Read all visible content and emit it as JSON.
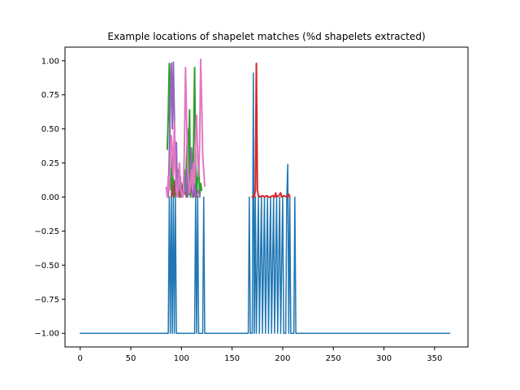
{
  "chart_data": {
    "type": "line",
    "title": "Example locations of shapelet matches (%d shapelets extracted)",
    "xlabel": "",
    "ylabel": "",
    "xlim": [
      -15,
      383
    ],
    "ylim": [
      -1.1,
      1.1
    ],
    "xticks": [
      0,
      50,
      100,
      150,
      200,
      250,
      300,
      350
    ],
    "xtick_labels": [
      "0",
      "50",
      "100",
      "150",
      "200",
      "250",
      "300",
      "350"
    ],
    "yticks": [
      -1.0,
      -0.75,
      -0.5,
      -0.25,
      0.0,
      0.25,
      0.5,
      0.75,
      1.0
    ],
    "ytick_labels": [
      "−1.00",
      "−0.75",
      "−0.50",
      "−0.25",
      "0.00",
      "0.25",
      "0.50",
      "0.75",
      "1.00"
    ],
    "grid": false,
    "legend": false,
    "series": [
      {
        "color": "#1f77b4",
        "linewidth": 1.5,
        "points": [
          [
            0,
            -1
          ],
          [
            87,
            -1
          ],
          [
            88,
            0
          ],
          [
            89,
            -1
          ],
          [
            90,
            0
          ],
          [
            91,
            -1
          ],
          [
            92,
            0
          ],
          [
            93,
            -1
          ],
          [
            94,
            0
          ],
          [
            95,
            -1
          ],
          [
            113,
            -1
          ],
          [
            114,
            0
          ],
          [
            115,
            -1
          ],
          [
            116,
            0
          ],
          [
            117,
            -1
          ],
          [
            121,
            -1
          ],
          [
            122,
            0
          ],
          [
            123,
            -1
          ],
          [
            166,
            -1
          ],
          [
            167,
            0
          ],
          [
            168,
            -1
          ],
          [
            170,
            -1
          ],
          [
            171,
            0.91
          ],
          [
            172,
            -1
          ],
          [
            173,
            0
          ],
          [
            174,
            -1
          ],
          [
            176,
            0
          ],
          [
            177,
            -1
          ],
          [
            179,
            0
          ],
          [
            180,
            -1
          ],
          [
            182,
            0
          ],
          [
            183,
            -1
          ],
          [
            185,
            0
          ],
          [
            186,
            -1
          ],
          [
            188,
            0
          ],
          [
            189,
            -1
          ],
          [
            191,
            0
          ],
          [
            192,
            -1
          ],
          [
            194,
            0
          ],
          [
            195,
            -1
          ],
          [
            197,
            0
          ],
          [
            198,
            -1
          ],
          [
            200,
            0
          ],
          [
            201,
            -1
          ],
          [
            203,
            -1
          ],
          [
            204,
            0
          ],
          [
            205,
            0.24
          ],
          [
            206,
            -1
          ],
          [
            207,
            0
          ],
          [
            208,
            -1
          ],
          [
            211,
            -1
          ],
          [
            212,
            0
          ],
          [
            213,
            -1
          ],
          [
            365,
            -1
          ]
        ]
      },
      {
        "color": "#2ca02c",
        "linewidth": 2,
        "points": [
          [
            86,
            0.35
          ],
          [
            87,
            0.6
          ],
          [
            88,
            0.98
          ],
          [
            89,
            0.15
          ],
          [
            90,
            0.05
          ],
          [
            91,
            0.3
          ],
          [
            92,
            0.05
          ],
          [
            93,
            0.0
          ],
          [
            95,
            0.2
          ],
          [
            96,
            0.0
          ],
          [
            98,
            0.1
          ],
          [
            99,
            0.0
          ],
          [
            100,
            0.1
          ],
          [
            101,
            0.0
          ],
          [
            103,
            0.2
          ],
          [
            104,
            0.02
          ],
          [
            106,
            0.5
          ],
          [
            107,
            0.05
          ],
          [
            108,
            0.64
          ],
          [
            109,
            0.0
          ],
          [
            110,
            0.2
          ],
          [
            111,
            0.0
          ],
          [
            112,
            0.38
          ],
          [
            113,
            0.95
          ],
          [
            114,
            0.2
          ],
          [
            115,
            0.0
          ],
          [
            117,
            0.3
          ],
          [
            118,
            0.0
          ],
          [
            119,
            0.1
          ],
          [
            120,
            0.05
          ]
        ]
      },
      {
        "color": "#8c564b",
        "linewidth": 2,
        "points": [
          [
            90,
            0.0
          ],
          [
            91,
            0.08
          ],
          [
            92,
            0.0
          ],
          [
            93,
            0.12
          ],
          [
            94,
            0.01
          ],
          [
            96,
            0.05
          ],
          [
            97,
            0.18
          ],
          [
            98,
            0.0
          ],
          [
            100,
            0.08
          ],
          [
            101,
            0.0
          ],
          [
            103,
            0.05
          ],
          [
            105,
            0.0
          ],
          [
            107,
            0.1
          ],
          [
            108,
            0.02
          ],
          [
            110,
            0.07
          ],
          [
            112,
            0.0
          ],
          [
            114,
            0.05
          ],
          [
            116,
            0.0
          ]
        ]
      },
      {
        "color": "#9467bd",
        "linewidth": 2,
        "points": [
          [
            87,
            0.0
          ],
          [
            88,
            0.3
          ],
          [
            89,
            0.7
          ],
          [
            90,
            0.98
          ],
          [
            91,
            0.5
          ],
          [
            92,
            0.99
          ],
          [
            93,
            0.6
          ],
          [
            94,
            0.2
          ],
          [
            95,
            0.4
          ],
          [
            96,
            0.0
          ],
          [
            97,
            0.2
          ],
          [
            98,
            0.05
          ],
          [
            99,
            0.15
          ],
          [
            100,
            0.0
          ],
          [
            104,
            0.05
          ],
          [
            105,
            0.2
          ],
          [
            106,
            0.0
          ],
          [
            109,
            0.1
          ],
          [
            110,
            0.36
          ],
          [
            111,
            0.0
          ],
          [
            113,
            0.1
          ],
          [
            114,
            0.0
          ],
          [
            117,
            0.05
          ],
          [
            118,
            0.0
          ]
        ]
      },
      {
        "color": "#e377c2",
        "linewidth": 2,
        "points": [
          [
            85,
            0.07
          ],
          [
            86,
            0.0
          ],
          [
            87,
            0.15
          ],
          [
            88,
            0.05
          ],
          [
            89,
            0.25
          ],
          [
            90,
            0.45
          ],
          [
            91,
            0.35
          ],
          [
            92,
            0.15
          ],
          [
            93,
            0.55
          ],
          [
            94,
            0.2
          ],
          [
            95,
            0.05
          ],
          [
            96,
            0.0
          ],
          [
            97,
            0.1
          ],
          [
            98,
            0.25
          ],
          [
            99,
            0.08
          ],
          [
            100,
            0.02
          ],
          [
            101,
            0.0
          ],
          [
            102,
            0.05
          ],
          [
            103,
            0.4
          ],
          [
            104,
            0.95
          ],
          [
            105,
            0.6
          ],
          [
            106,
            0.3
          ],
          [
            107,
            0.12
          ],
          [
            108,
            0.03
          ],
          [
            109,
            0.1
          ],
          [
            110,
            0.2
          ],
          [
            111,
            0.05
          ],
          [
            112,
            0.25
          ],
          [
            113,
            0.1
          ],
          [
            114,
            0.45
          ],
          [
            115,
            0.6
          ],
          [
            116,
            0.3
          ],
          [
            117,
            0.15
          ],
          [
            118,
            0.4
          ],
          [
            119,
            1.01
          ],
          [
            120,
            0.7
          ],
          [
            121,
            0.3
          ],
          [
            122,
            0.2
          ],
          [
            123,
            0.08
          ]
        ]
      },
      {
        "color": "#d62728",
        "linewidth": 2,
        "points": [
          [
            170,
            0.0
          ],
          [
            171,
            0.01
          ],
          [
            172,
            0.0
          ],
          [
            173,
            0.05
          ],
          [
            174,
            0.98
          ],
          [
            175,
            0.05
          ],
          [
            176,
            0.01
          ],
          [
            178,
            0.0
          ],
          [
            180,
            0.01
          ],
          [
            182,
            0.0
          ],
          [
            184,
            0.01
          ],
          [
            186,
            0.0
          ],
          [
            188,
            0.0
          ],
          [
            190,
            0.01
          ],
          [
            192,
            0.0
          ],
          [
            193,
            0.03
          ],
          [
            194,
            0.0
          ],
          [
            196,
            0.01
          ],
          [
            198,
            0.03
          ],
          [
            199,
            0.0
          ],
          [
            201,
            0.01
          ],
          [
            204,
            0.0
          ],
          [
            206,
            0.02
          ],
          [
            207,
            0.0
          ]
        ]
      }
    ]
  }
}
